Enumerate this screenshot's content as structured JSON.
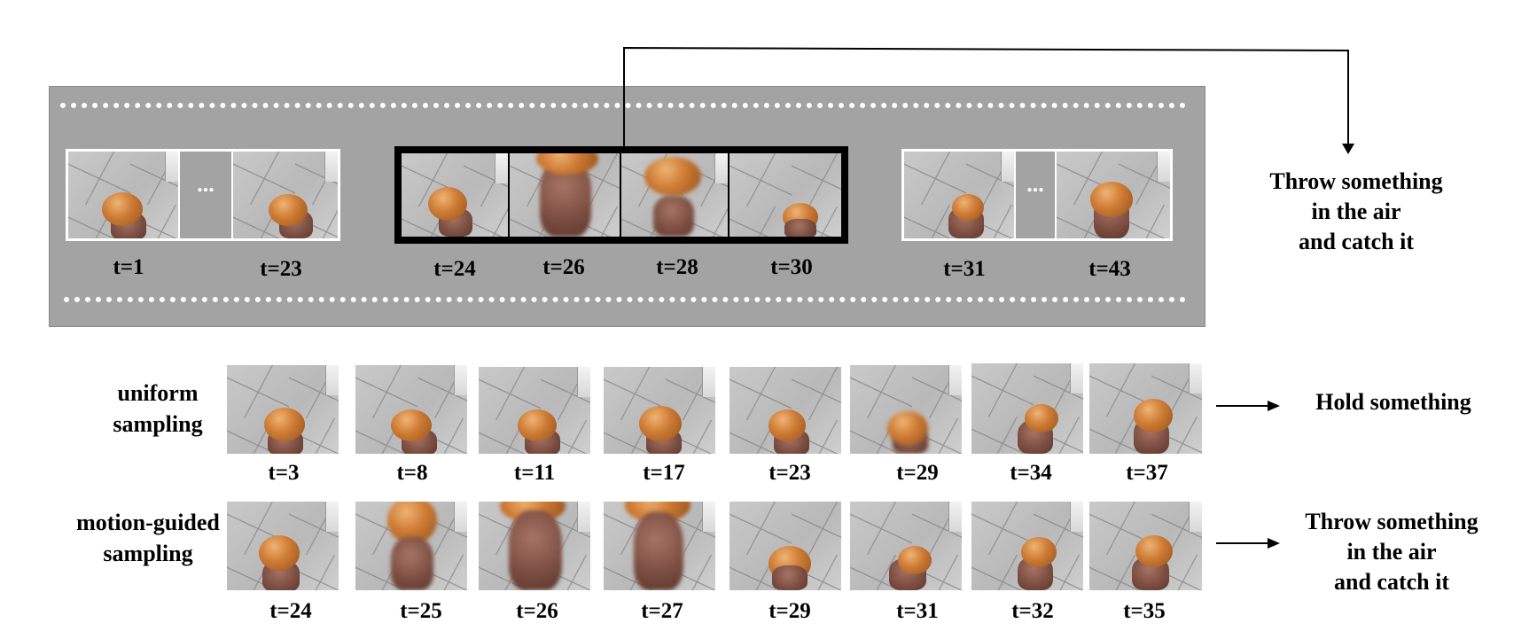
{
  "top_panel": {
    "groups": [
      {
        "labels": [
          "t=1",
          "t=23"
        ],
        "ellipsis": "..."
      },
      {
        "labels": [
          "t=24",
          "t=26",
          "t=28",
          "t=30"
        ]
      },
      {
        "labels": [
          "t=31",
          "t=43"
        ],
        "ellipsis": "..."
      }
    ],
    "result": "Throw something\nin the air\nand catch it"
  },
  "rows": [
    {
      "label": "uniform\nsampling",
      "times": [
        "t=3",
        "t=8",
        "t=11",
        "t=17",
        "t=23",
        "t=29",
        "t=34",
        "t=37"
      ],
      "result": "Hold something"
    },
    {
      "label": "motion-guided\nsampling",
      "times": [
        "t=24",
        "t=25",
        "t=26",
        "t=27",
        "t=29",
        "t=31",
        "t=32",
        "t=35"
      ],
      "result": "Throw something\nin the air\nand catch it"
    }
  ],
  "colors": {
    "panel": "#a3a3a3",
    "highlight_border": "#000000",
    "dots": "#ffffff"
  }
}
